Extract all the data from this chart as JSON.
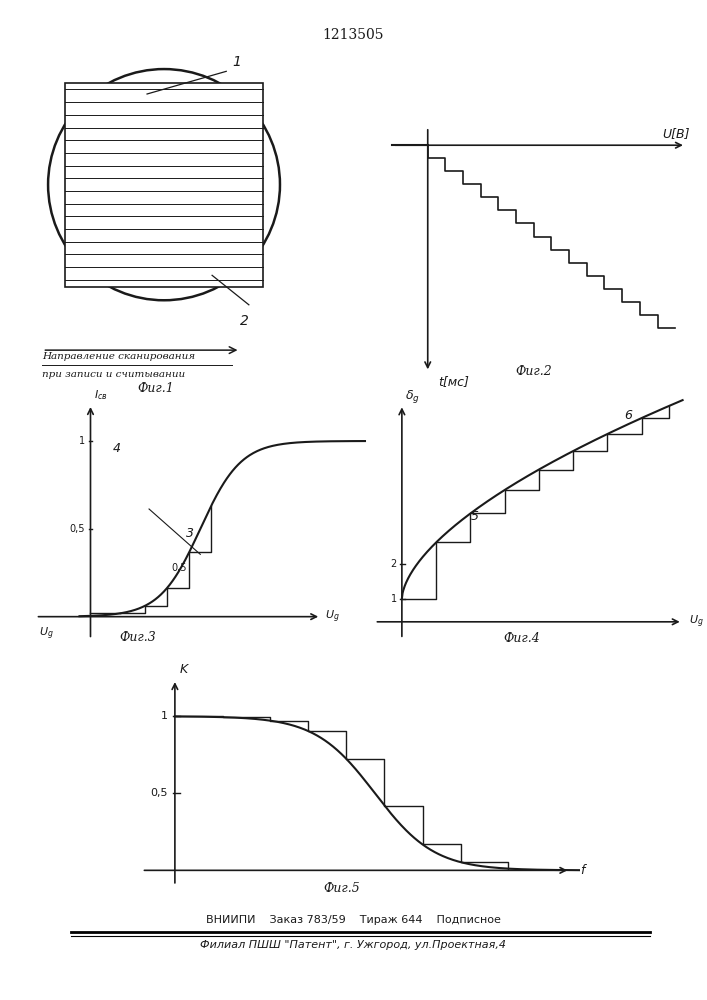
{
  "title": "1213505",
  "fig1_caption": "Фиг.1",
  "fig2_caption": "Фиг.2",
  "fig3_caption": "Фиг.3",
  "fig4_caption": "Фиг.4",
  "fig5_caption": "Фиг.5",
  "fig1_label1": "1",
  "fig1_label2": "2",
  "fig1_scan_text1": "Направление сканирования",
  "fig1_scan_text2": "при записи и считывании",
  "fig2_xlabel": "t[мс]",
  "fig2_ylabel": "U[В]",
  "fig3_ylabel": "Iсв",
  "fig3_label3": "3",
  "fig3_label4": "4",
  "fig3_tick05": "0,5",
  "fig3_tick1": "1",
  "fig4_ylabel": "δg",
  "fig4_label5": "5",
  "fig4_label6": "6",
  "fig4_tick1": "1",
  "fig4_tick2": "2",
  "fig5_xlabel": "f",
  "fig5_ylabel": "K",
  "fig5_tick05": "0,5",
  "fig5_tick1": "1",
  "footer1": "ВНИИПИ    Заказ 783/59    Тираж 644    Подписное",
  "footer2": "Филиал ПШШ \"Патент\", г. Ужгород, ул.Проектная,4",
  "line_color": "#1a1a1a",
  "text_color": "#1a1a1a"
}
